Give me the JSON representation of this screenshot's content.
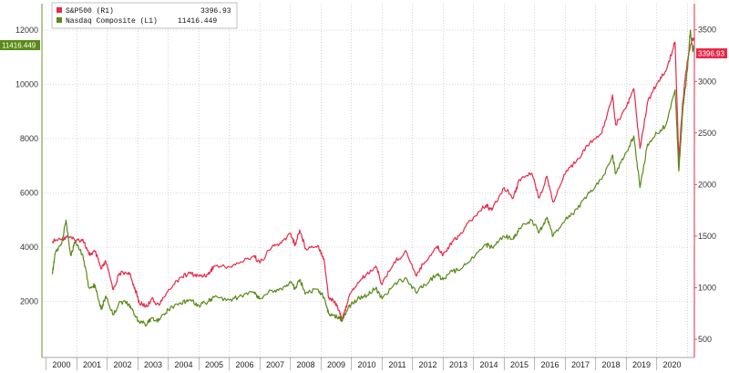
{
  "chart_data": {
    "type": "line",
    "title": "",
    "xlabel": "",
    "legend_position": "top-left",
    "grid": true,
    "x_ticks": [
      "2000",
      "2001",
      "2002",
      "2003",
      "2004",
      "2005",
      "2006",
      "2007",
      "2008",
      "2009",
      "2010",
      "2011",
      "2012",
      "2013",
      "2014",
      "2015",
      "2016",
      "2017",
      "2018",
      "2019",
      "2020"
    ],
    "left_axis": {
      "range": [
        0,
        12000
      ],
      "ticks": [
        "2000",
        "4000",
        "6000",
        "8000",
        "10000",
        "12000"
      ]
    },
    "right_axis": {
      "range": [
        500,
        3700
      ],
      "ticks": [
        "500",
        "1000",
        "1500",
        "2000",
        "2500",
        "3000",
        "3500"
      ]
    },
    "series": [
      {
        "name": "S&P500 (R1)",
        "legend_value": "3396.93",
        "last_badge": "3396.93",
        "axis": "right",
        "color": "#e8294a",
        "points": [
          [
            1999.7,
            1450
          ],
          [
            2000.0,
            1470
          ],
          [
            2000.2,
            1500
          ],
          [
            2000.45,
            1455
          ],
          [
            2000.7,
            1470
          ],
          [
            2000.9,
            1320
          ],
          [
            2001.1,
            1350
          ],
          [
            2001.3,
            1180
          ],
          [
            2001.45,
            1250
          ],
          [
            2001.7,
            980
          ],
          [
            2001.9,
            1140
          ],
          [
            2002.2,
            1150
          ],
          [
            2002.4,
            1000
          ],
          [
            2002.55,
            850
          ],
          [
            2002.8,
            820
          ],
          [
            2002.95,
            890
          ],
          [
            2003.2,
            830
          ],
          [
            2003.5,
            980
          ],
          [
            2003.9,
            1100
          ],
          [
            2004.2,
            1140
          ],
          [
            2004.5,
            1110
          ],
          [
            2004.8,
            1130
          ],
          [
            2005.0,
            1210
          ],
          [
            2005.5,
            1200
          ],
          [
            2005.9,
            1250
          ],
          [
            2006.3,
            1310
          ],
          [
            2006.5,
            1240
          ],
          [
            2006.9,
            1400
          ],
          [
            2007.2,
            1430
          ],
          [
            2007.5,
            1530
          ],
          [
            2007.65,
            1410
          ],
          [
            2007.8,
            1560
          ],
          [
            2008.0,
            1380
          ],
          [
            2008.4,
            1410
          ],
          [
            2008.6,
            1280
          ],
          [
            2008.75,
            900
          ],
          [
            2008.9,
            880
          ],
          [
            2009.1,
            780
          ],
          [
            2009.2,
            680
          ],
          [
            2009.4,
            900
          ],
          [
            2009.7,
            1050
          ],
          [
            2010.0,
            1130
          ],
          [
            2010.3,
            1210
          ],
          [
            2010.5,
            1030
          ],
          [
            2010.9,
            1250
          ],
          [
            2011.3,
            1350
          ],
          [
            2011.6,
            1120
          ],
          [
            2011.9,
            1250
          ],
          [
            2012.3,
            1400
          ],
          [
            2012.5,
            1320
          ],
          [
            2012.8,
            1450
          ],
          [
            2013.0,
            1500
          ],
          [
            2013.4,
            1650
          ],
          [
            2013.9,
            1800
          ],
          [
            2014.1,
            1750
          ],
          [
            2014.5,
            1970
          ],
          [
            2014.8,
            1870
          ],
          [
            2015.0,
            2050
          ],
          [
            2015.4,
            2110
          ],
          [
            2015.65,
            1870
          ],
          [
            2015.9,
            2080
          ],
          [
            2016.1,
            1830
          ],
          [
            2016.5,
            2100
          ],
          [
            2016.9,
            2250
          ],
          [
            2017.3,
            2400
          ],
          [
            2017.7,
            2500
          ],
          [
            2018.05,
            2870
          ],
          [
            2018.15,
            2580
          ],
          [
            2018.5,
            2750
          ],
          [
            2018.75,
            2930
          ],
          [
            2018.95,
            2350
          ],
          [
            2019.2,
            2800
          ],
          [
            2019.5,
            2980
          ],
          [
            2019.8,
            3100
          ],
          [
            2020.1,
            3380
          ],
          [
            2020.22,
            2230
          ],
          [
            2020.35,
            2800
          ],
          [
            2020.5,
            3200
          ],
          [
            2020.65,
            3400
          ],
          [
            2020.72,
            3396.93
          ]
        ]
      },
      {
        "name": "Nasdaq Composite (L1)",
        "legend_value": "11416.449",
        "last_badge": "11416.449",
        "axis": "left",
        "color": "#5a8a18",
        "points": [
          [
            1999.7,
            3000
          ],
          [
            1999.8,
            3800
          ],
          [
            2000.0,
            4100
          ],
          [
            2000.15,
            5000
          ],
          [
            2000.3,
            3700
          ],
          [
            2000.45,
            4200
          ],
          [
            2000.7,
            3700
          ],
          [
            2000.9,
            2500
          ],
          [
            2001.1,
            2600
          ],
          [
            2001.3,
            1700
          ],
          [
            2001.45,
            2200
          ],
          [
            2001.7,
            1500
          ],
          [
            2001.9,
            2000
          ],
          [
            2002.2,
            1900
          ],
          [
            2002.4,
            1500
          ],
          [
            2002.55,
            1250
          ],
          [
            2002.8,
            1150
          ],
          [
            2002.95,
            1400
          ],
          [
            2003.2,
            1300
          ],
          [
            2003.5,
            1700
          ],
          [
            2003.9,
            1950
          ],
          [
            2004.2,
            2050
          ],
          [
            2004.5,
            1850
          ],
          [
            2004.8,
            2000
          ],
          [
            2005.0,
            2150
          ],
          [
            2005.5,
            2050
          ],
          [
            2005.9,
            2200
          ],
          [
            2006.3,
            2350
          ],
          [
            2006.5,
            2100
          ],
          [
            2006.9,
            2400
          ],
          [
            2007.2,
            2450
          ],
          [
            2007.5,
            2700
          ],
          [
            2007.65,
            2450
          ],
          [
            2007.8,
            2800
          ],
          [
            2008.0,
            2300
          ],
          [
            2008.4,
            2450
          ],
          [
            2008.6,
            2150
          ],
          [
            2008.75,
            1550
          ],
          [
            2008.9,
            1500
          ],
          [
            2009.1,
            1400
          ],
          [
            2009.2,
            1300
          ],
          [
            2009.4,
            1800
          ],
          [
            2009.7,
            2100
          ],
          [
            2010.0,
            2200
          ],
          [
            2010.3,
            2500
          ],
          [
            2010.5,
            2100
          ],
          [
            2010.9,
            2650
          ],
          [
            2011.3,
            2850
          ],
          [
            2011.6,
            2350
          ],
          [
            2011.9,
            2600
          ],
          [
            2012.3,
            3000
          ],
          [
            2012.5,
            2800
          ],
          [
            2012.8,
            3100
          ],
          [
            2013.0,
            3150
          ],
          [
            2013.4,
            3500
          ],
          [
            2013.9,
            4100
          ],
          [
            2014.1,
            4000
          ],
          [
            2014.5,
            4400
          ],
          [
            2014.8,
            4300
          ],
          [
            2015.0,
            4700
          ],
          [
            2015.4,
            5000
          ],
          [
            2015.65,
            4550
          ],
          [
            2015.9,
            5100
          ],
          [
            2016.1,
            4400
          ],
          [
            2016.5,
            5000
          ],
          [
            2016.9,
            5400
          ],
          [
            2017.3,
            6000
          ],
          [
            2017.7,
            6500
          ],
          [
            2018.05,
            7400
          ],
          [
            2018.15,
            6700
          ],
          [
            2018.5,
            7500
          ],
          [
            2018.75,
            8100
          ],
          [
            2018.95,
            6200
          ],
          [
            2019.2,
            7800
          ],
          [
            2019.5,
            8200
          ],
          [
            2019.8,
            8500
          ],
          [
            2020.1,
            9800
          ],
          [
            2020.22,
            6800
          ],
          [
            2020.35,
            9000
          ],
          [
            2020.5,
            10500
          ],
          [
            2020.6,
            12000
          ],
          [
            2020.68,
            11200
          ],
          [
            2020.72,
            11416.449
          ]
        ]
      }
    ]
  }
}
